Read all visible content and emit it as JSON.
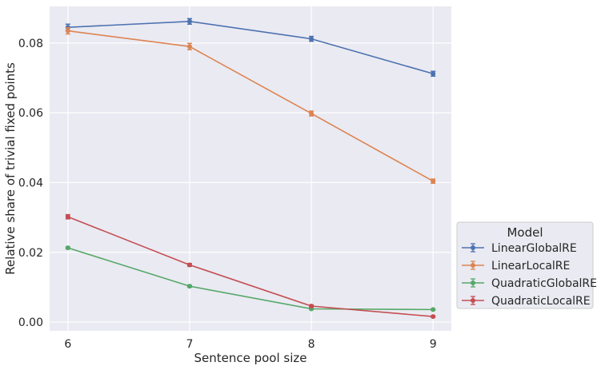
{
  "chart_data": {
    "type": "line",
    "title": "",
    "xlabel": "Sentence pool size",
    "ylabel": "Relative share of trivial fixed points",
    "x": [
      6,
      7,
      8,
      9
    ],
    "x_ticks": [
      "6",
      "7",
      "8",
      "9"
    ],
    "xlim": [
      5.85,
      9.15
    ],
    "ylim": [
      -0.0025,
      0.0905
    ],
    "y_ticks": [
      "0.00",
      "0.02",
      "0.04",
      "0.06",
      "0.08"
    ],
    "y_tick_values": [
      0.0,
      0.02,
      0.04,
      0.06,
      0.08
    ],
    "grid": true,
    "background": "#eaeaf2",
    "legend": {
      "title": "Model",
      "placement": "outside-right-bottom"
    },
    "error_bars": true,
    "series": [
      {
        "name": "LinearGlobalRE",
        "color": "#4c72b0",
        "values": [
          0.0845,
          0.0862,
          0.0812,
          0.0712
        ],
        "errors": [
          0.0009,
          0.0008,
          0.0007,
          0.0007
        ]
      },
      {
        "name": "LinearLocalRE",
        "color": "#dd8452",
        "values": [
          0.0835,
          0.079,
          0.0598,
          0.0404
        ],
        "errors": [
          0.0009,
          0.0009,
          0.0007,
          0.0006
        ]
      },
      {
        "name": "QuadraticGlobalRE",
        "color": "#55a868",
        "values": [
          0.0213,
          0.0103,
          0.0038,
          0.0036
        ],
        "errors": [
          0.0003,
          0.0003,
          0.0002,
          0.0002
        ]
      },
      {
        "name": "QuadraticLocalRE",
        "color": "#c44e52",
        "values": [
          0.0302,
          0.0164,
          0.0046,
          0.0016
        ],
        "errors": [
          0.0006,
          0.0004,
          0.0003,
          0.0002
        ]
      }
    ]
  }
}
